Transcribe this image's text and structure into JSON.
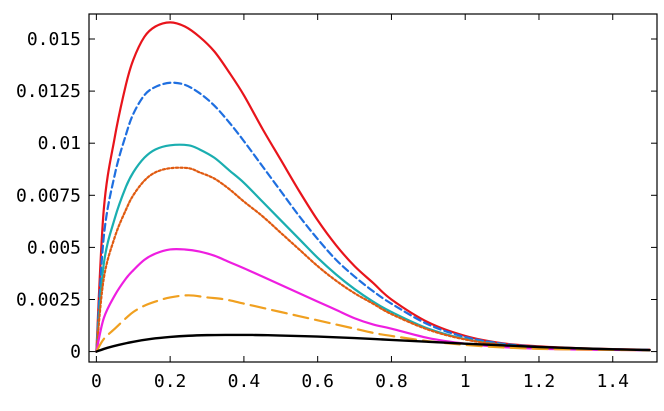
{
  "chart_data": {
    "type": "line",
    "title": "",
    "xlabel": "",
    "ylabel": "",
    "xlim": [
      -0.02,
      1.52
    ],
    "ylim": [
      -0.0005,
      0.0162
    ],
    "x_ticks": [
      0,
      0.2,
      0.4,
      0.6,
      0.8,
      1,
      1.2,
      1.4
    ],
    "x_tick_labels": [
      "0",
      "0.2",
      "0.4",
      "0.6",
      "0.8",
      "1",
      "1.2",
      "1.4"
    ],
    "y_ticks": [
      0,
      0.0025,
      0.005,
      0.0075,
      0.01,
      0.0125,
      0.015
    ],
    "y_tick_labels": [
      "0",
      "0.0025",
      "0.005",
      "0.0075",
      "0.01",
      "0.0125",
      "0.015"
    ],
    "series": [
      {
        "name": "red-solid",
        "color": "#e8141b",
        "dash": "solid",
        "x": [
          0,
          0.02,
          0.05,
          0.08,
          0.1,
          0.13,
          0.16,
          0.2,
          0.24,
          0.28,
          0.32,
          0.36,
          0.4,
          0.45,
          0.5,
          0.55,
          0.6,
          0.65,
          0.7,
          0.75,
          0.8,
          0.9,
          1.0,
          1.1,
          1.2,
          1.3,
          1.4,
          1.5
        ],
        "values": [
          0,
          0.0068,
          0.0103,
          0.0128,
          0.014,
          0.0151,
          0.0156,
          0.0158,
          0.0156,
          0.0151,
          0.0144,
          0.0134,
          0.0123,
          0.0107,
          0.0092,
          0.0077,
          0.0063,
          0.0051,
          0.0041,
          0.0033,
          0.0025,
          0.0014,
          0.00075,
          0.0004,
          0.00025,
          0.00017,
          0.00012,
          9e-05
        ]
      },
      {
        "name": "blue-dashed",
        "color": "#1f6fe0",
        "dash": "short-dash",
        "x": [
          0,
          0.02,
          0.05,
          0.08,
          0.1,
          0.13,
          0.16,
          0.2,
          0.24,
          0.28,
          0.32,
          0.36,
          0.4,
          0.45,
          0.5,
          0.55,
          0.6,
          0.65,
          0.7,
          0.75,
          0.8,
          0.9,
          1.0,
          1.1,
          1.2,
          1.3,
          1.4,
          1.5
        ],
        "values": [
          0,
          0.0055,
          0.0085,
          0.0104,
          0.0114,
          0.0123,
          0.0127,
          0.0129,
          0.0128,
          0.0124,
          0.0118,
          0.011,
          0.0101,
          0.0089,
          0.0077,
          0.0065,
          0.0054,
          0.0044,
          0.0036,
          0.0029,
          0.0023,
          0.0013,
          0.0007,
          0.00038,
          0.00023,
          0.00016,
          0.00011,
          8e-05
        ]
      },
      {
        "name": "teal-solid",
        "color": "#1aaeb0",
        "dash": "solid",
        "x": [
          0,
          0.02,
          0.05,
          0.08,
          0.1,
          0.13,
          0.16,
          0.2,
          0.25,
          0.28,
          0.32,
          0.36,
          0.4,
          0.45,
          0.5,
          0.55,
          0.6,
          0.65,
          0.7,
          0.75,
          0.8,
          0.9,
          1.0,
          1.1,
          1.2,
          1.3,
          1.4,
          1.5
        ],
        "values": [
          0,
          0.0042,
          0.0064,
          0.0079,
          0.0086,
          0.0093,
          0.0097,
          0.0099,
          0.0099,
          0.0097,
          0.0093,
          0.0087,
          0.0081,
          0.0072,
          0.0063,
          0.0054,
          0.0045,
          0.0037,
          0.003,
          0.0024,
          0.0019,
          0.0011,
          0.0006,
          0.00033,
          0.0002,
          0.00014,
          0.0001,
          7e-05
        ]
      },
      {
        "name": "orange-dotted",
        "color": "#e05a10",
        "dash": "dotted",
        "x": [
          0,
          0.02,
          0.05,
          0.08,
          0.1,
          0.13,
          0.16,
          0.2,
          0.25,
          0.28,
          0.32,
          0.36,
          0.4,
          0.45,
          0.5,
          0.55,
          0.6,
          0.65,
          0.7,
          0.75,
          0.8,
          0.9,
          1.0,
          1.1,
          1.2,
          1.3,
          1.4,
          1.5
        ],
        "values": [
          0,
          0.0035,
          0.0055,
          0.0068,
          0.0075,
          0.0082,
          0.0086,
          0.0088,
          0.0088,
          0.0086,
          0.0083,
          0.0078,
          0.0072,
          0.0065,
          0.0057,
          0.0049,
          0.0041,
          0.0034,
          0.0028,
          0.0023,
          0.0018,
          0.00105,
          0.00058,
          0.00032,
          0.0002,
          0.00014,
          0.0001,
          7e-05
        ]
      },
      {
        "name": "magenta-solid",
        "color": "#ee1ee0",
        "dash": "solid",
        "x": [
          0,
          0.02,
          0.05,
          0.08,
          0.1,
          0.13,
          0.16,
          0.2,
          0.24,
          0.28,
          0.32,
          0.36,
          0.4,
          0.45,
          0.5,
          0.55,
          0.6,
          0.65,
          0.7,
          0.75,
          0.8,
          0.9,
          1.0,
          1.1,
          1.2,
          1.3,
          1.4,
          1.5
        ],
        "values": [
          0,
          0.0016,
          0.0027,
          0.0035,
          0.0039,
          0.0044,
          0.0047,
          0.0049,
          0.0049,
          0.0048,
          0.0046,
          0.0043,
          0.004,
          0.0036,
          0.0032,
          0.0028,
          0.0024,
          0.002,
          0.0016,
          0.0013,
          0.0011,
          0.00065,
          0.00038,
          0.00022,
          0.00014,
          0.0001,
          8e-05,
          6e-05
        ]
      },
      {
        "name": "orange-long-dash",
        "color": "#f0a020",
        "dash": "long-dash",
        "x": [
          0,
          0.02,
          0.05,
          0.08,
          0.1,
          0.13,
          0.16,
          0.2,
          0.25,
          0.3,
          0.35,
          0.4,
          0.45,
          0.5,
          0.55,
          0.6,
          0.65,
          0.7,
          0.75,
          0.8,
          0.9,
          1.0,
          1.1,
          1.2,
          1.3,
          1.4,
          1.5
        ],
        "values": [
          0,
          0.0006,
          0.0011,
          0.0016,
          0.0019,
          0.0022,
          0.0024,
          0.0026,
          0.0027,
          0.0026,
          0.0025,
          0.0023,
          0.0021,
          0.0019,
          0.0017,
          0.0015,
          0.0013,
          0.0011,
          0.0009,
          0.00075,
          0.0005,
          0.00032,
          0.0002,
          0.00013,
          0.0001,
          8e-05,
          6e-05
        ]
      },
      {
        "name": "black-solid",
        "color": "#000000",
        "dash": "solid",
        "x": [
          0,
          0.03,
          0.06,
          0.1,
          0.15,
          0.2,
          0.25,
          0.3,
          0.35,
          0.4,
          0.45,
          0.5,
          0.6,
          0.7,
          0.8,
          0.9,
          1.0,
          1.1,
          1.2,
          1.3,
          1.4,
          1.5
        ],
        "values": [
          0,
          0.00018,
          0.00032,
          0.00047,
          0.00061,
          0.0007,
          0.00076,
          0.00079,
          0.0008,
          0.0008,
          0.00079,
          0.00077,
          0.00072,
          0.00065,
          0.00056,
          0.00047,
          0.00038,
          0.0003,
          0.00022,
          0.00016,
          0.00011,
          7e-05
        ]
      }
    ]
  }
}
